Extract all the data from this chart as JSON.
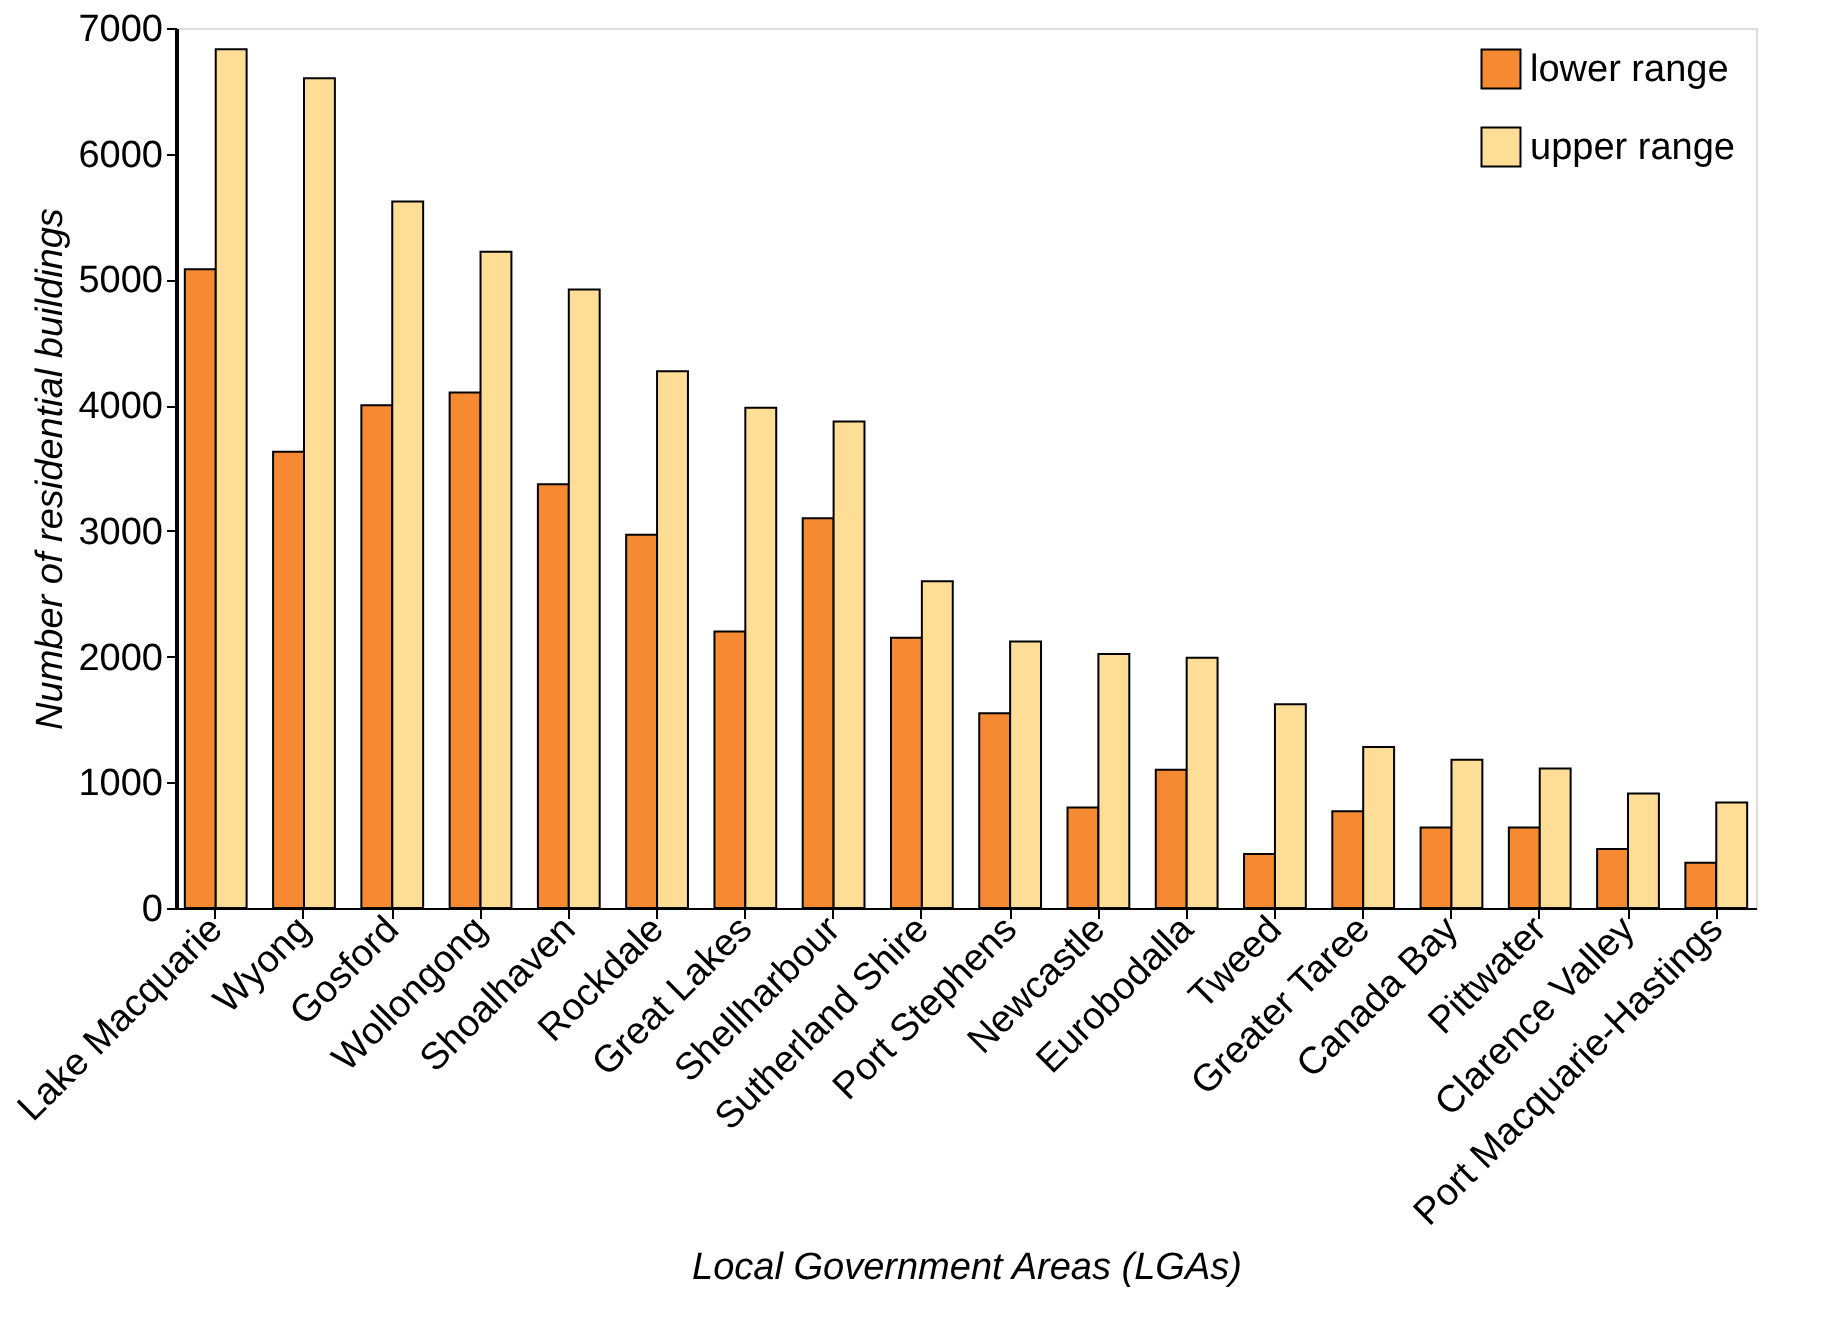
{
  "chart_data": {
    "type": "bar",
    "xlabel": "Local Government Areas (LGAs)",
    "ylabel": "Number of residential buildings",
    "categories": [
      "Lake Macquarie",
      "Wyong",
      "Gosford",
      "Wollongong",
      "Shoalhaven",
      "Rockdale",
      "Great Lakes",
      "Shellharbour",
      "Sutherland  Shire",
      "Port Stephens",
      "Newcastle",
      "Eurobodalla",
      "Tweed",
      "Greater Taree",
      "Canada Bay",
      "Pittwater",
      "Clarence Valley",
      "Port Macquarie-Hastings"
    ],
    "series": [
      {
        "name": "lower range",
        "color": "#f58a33",
        "values": [
          5080,
          3630,
          4000,
          4100,
          3370,
          2970,
          2200,
          3100,
          2150,
          1550,
          800,
          1100,
          430,
          770,
          640,
          640,
          470,
          360
        ]
      },
      {
        "name": "upper range",
        "color": "#fedd96",
        "values": [
          6830,
          6600,
          5620,
          5220,
          4920,
          4270,
          3980,
          3870,
          2600,
          2120,
          2020,
          1990,
          1620,
          1280,
          1180,
          1110,
          910,
          840
        ]
      }
    ],
    "ylim": [
      0,
      7000
    ],
    "yticks": [
      0,
      1000,
      2000,
      3000,
      4000,
      5000,
      6000,
      7000
    ],
    "grid": false,
    "legend": "top right"
  }
}
